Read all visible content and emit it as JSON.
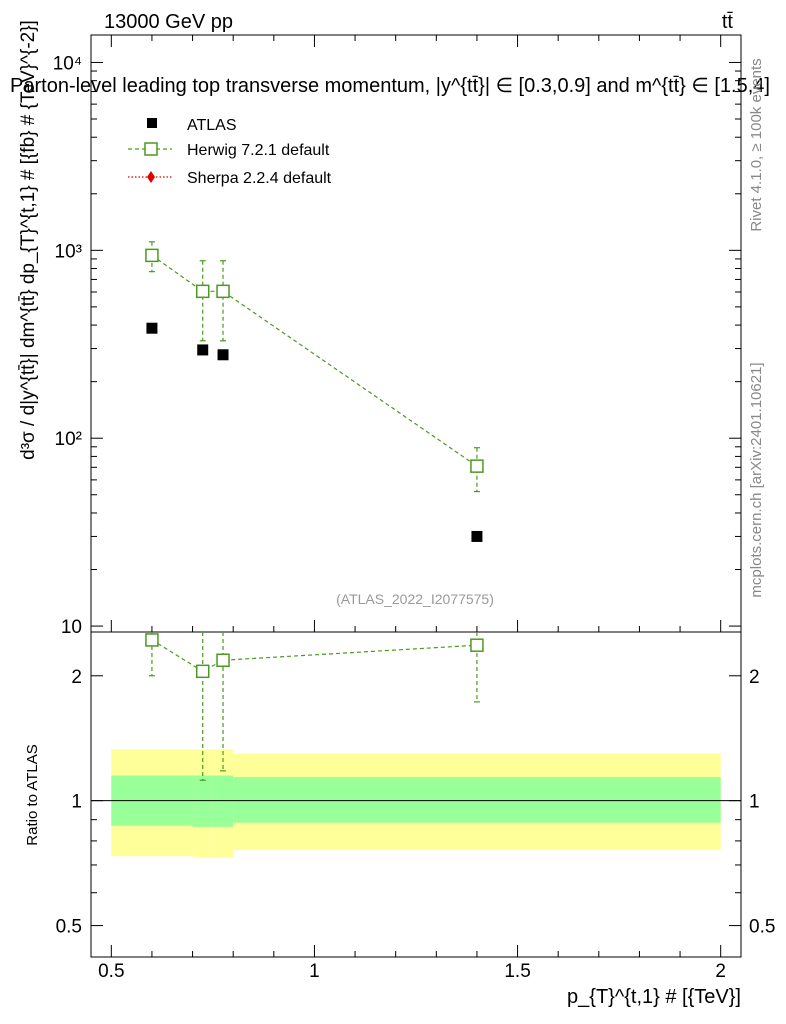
{
  "header": {
    "energy_label": "13000 GeV pp",
    "process_label": "tt̄",
    "title": "Parton-level leading top transverse momentum, |y^{tt̄}| ∈ [0.3,0.9] and m^{tt̄} ∈ [1.5,4]"
  },
  "side": {
    "rivet_label": "Rivet 4.1.0, ≥ 100k events",
    "mcplots_label": "mcplots.cern.ch [arXiv:2401.10621]"
  },
  "watermark": "(ATLAS_2022_I2077575)",
  "main_ylabel": "d³σ / d|y^{tt̄}| dm^{tt̄} dp_{T}^{t,1} # [{fb} # {TeV}^{-2}]",
  "ratio_ylabel": "Ratio to ATLAS",
  "xlabel": "p_{T}^{t,1} # [{TeV}]",
  "legend": [
    {
      "name": "ATLAS",
      "color": "#000000",
      "marker": "square-filled"
    },
    {
      "name": "Herwig 7.2.1 default",
      "color": "#4a9a1f",
      "marker": "square-open",
      "line": "dashed"
    },
    {
      "name": "Sherpa 2.2.4 default",
      "color": "#e00000",
      "marker": "diamond",
      "line": "dotted"
    }
  ],
  "chart_data": {
    "type": "scatter",
    "xlim": [
      0.45,
      2.05
    ],
    "main_ylim": [
      9.3,
      14000
    ],
    "main_yscale": "log",
    "main_yticks": [
      {
        "value": 10,
        "label": "10"
      },
      {
        "value": 100,
        "label": "10²"
      },
      {
        "value": 1000,
        "label": "10³"
      },
      {
        "value": 10000,
        "label": "10⁴"
      }
    ],
    "ratio_ylim": [
      0.42,
      2.55
    ],
    "ratio_yscale": "log",
    "ratio_yticks": [
      {
        "value": 0.5,
        "label": "0.5"
      },
      {
        "value": 1,
        "label": "1"
      },
      {
        "value": 2,
        "label": "2"
      }
    ],
    "xticks": [
      {
        "value": 0.5,
        "label": "0.5"
      },
      {
        "value": 1,
        "label": "1"
      },
      {
        "value": 1.5,
        "label": "1.5"
      },
      {
        "value": 2,
        "label": "2"
      }
    ],
    "bins": [
      {
        "lo": 0.5,
        "hi": 0.7
      },
      {
        "lo": 0.7,
        "hi": 0.75
      },
      {
        "lo": 0.75,
        "hi": 0.8
      },
      {
        "lo": 0.8,
        "hi": 2.0
      }
    ],
    "series": [
      {
        "name": "ATLAS",
        "x": [
          0.6,
          0.725,
          0.775,
          1.4
        ],
        "y": [
          385,
          295,
          278,
          30
        ]
      },
      {
        "name": "Herwig 7.2.1 default",
        "x": [
          0.6,
          0.725,
          0.775,
          1.4
        ],
        "y": [
          940,
          605,
          605,
          71
        ],
        "yerr_lo": [
          770,
          330,
          330,
          52
        ],
        "yerr_hi": [
          1110,
          880,
          880,
          89
        ]
      }
    ],
    "ratio_series": {
      "name": "Herwig 7.2.1 default",
      "x": [
        0.6,
        0.725,
        0.775,
        1.4
      ],
      "y": [
        2.44,
        2.05,
        2.18,
        2.37
      ],
      "yerr_lo": [
        2.0,
        1.12,
        1.18,
        1.73
      ],
      "yerr_hi": [
        2.55,
        2.55,
        2.55,
        2.55
      ]
    },
    "ratio_bands": {
      "stat": {
        "color": "#99ff99",
        "lo": [
          0.87,
          0.865,
          0.865,
          0.885
        ],
        "hi": [
          1.15,
          1.15,
          1.15,
          1.14
        ]
      },
      "total": {
        "color": "#ffff99",
        "lo": [
          0.735,
          0.73,
          0.73,
          0.76
        ],
        "hi": [
          1.33,
          1.33,
          1.33,
          1.3
        ]
      }
    }
  }
}
